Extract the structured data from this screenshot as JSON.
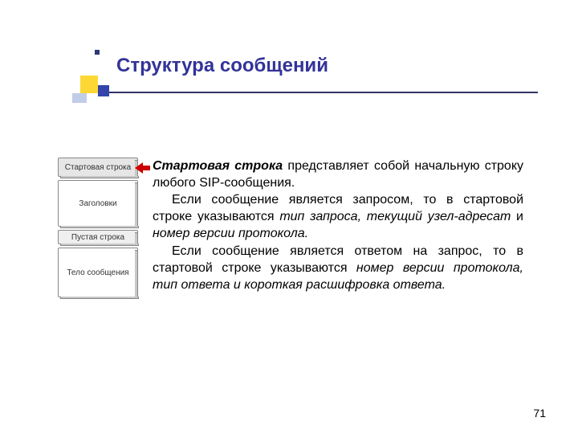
{
  "colors": {
    "title": "#333399",
    "underline": "#333366",
    "deco_yellow": "#fdd835",
    "deco_blue": "#3344aa",
    "deco_light": "#c0cde8",
    "arrow": "#cc0000",
    "text": "#000000"
  },
  "title": "Структура сообщений",
  "diagram": {
    "segments": [
      {
        "key": "start",
        "label": "Стартовая строка"
      },
      {
        "key": "headers",
        "label": "Заголовки"
      },
      {
        "key": "empty",
        "label": "Пустая строка"
      },
      {
        "key": "body",
        "label": "Тело сообщения"
      }
    ]
  },
  "body": {
    "lead_term": "Стартовая строка",
    "lead_rest": " представляет собой начальную строку любого SIP-сообщения.",
    "para2_a": "Если сообщение является запросом, то в стартовой строке указываются ",
    "para2_i": "тип запроса, текущий узел-адресат",
    "para2_b": " и ",
    "para2_j": "номер версии протокола.",
    "para3_a": "Если сообщение является ответом на запрос, то в стартовой строке указываются ",
    "para3_i": "номер версии протокола, тип ответа и короткая расшифровка ответа.",
    "font_size_pt": 12
  },
  "page_number": "71"
}
